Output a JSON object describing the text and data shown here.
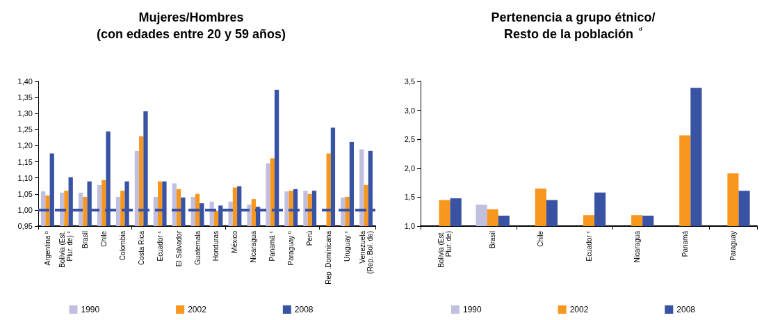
{
  "chart_data": [
    {
      "type": "bar",
      "title": "Mujeres/Hombres\n(con edades entre 20 y 59 años)",
      "categories": [
        "Argentina $^{b}$",
        "Bolivia (Est.\nPlur. de) $^{c}$",
        "Brasil",
        "Chile",
        "Colombia",
        "Costa Rica",
        "Ecuador $^{c}$",
        "El Salvador",
        "Guatemala",
        "Honduras",
        "México",
        "Nicaragua",
        "Panamá $^{c}$",
        "Paraguay $^{b}$",
        "Perú",
        "Rep .Dominicana",
        "Uruguay $^{c}$",
        "Venezuela\n(Rep. Bol. de)"
      ],
      "series": [
        {
          "name": "1990",
          "color": "#c0bfdf",
          "values": [
            1.058,
            1.054,
            1.054,
            1.078,
            1.041,
            1.184,
            1.041,
            1.083,
            1.041,
            1.026,
            1.026,
            1.017,
            1.145,
            1.058,
            1.06,
            null,
            1.039,
            1.189
          ]
        },
        {
          "name": "2002",
          "color": "#f7971e",
          "values": [
            1.045,
            1.06,
            1.041,
            1.093,
            1.06,
            1.229,
            1.089,
            1.065,
            1.05,
            0.998,
            1.07,
            1.034,
            1.161,
            1.06,
            1.05,
            1.176,
            1.041,
            1.078
          ]
        },
        {
          "name": "2008",
          "color": "#3953a4",
          "values": [
            1.176,
            1.102,
            1.089,
            1.244,
            1.089,
            1.307,
            1.089,
            1.039,
            1.021,
            1.014,
            1.074,
            1.01,
            1.374,
            1.065,
            1.06,
            1.256,
            1.212,
            1.184
          ]
        }
      ],
      "ylim": [
        0.95,
        1.4
      ],
      "yticks": [
        {
          "value": 0.95,
          "label": "0,95"
        },
        {
          "value": 1,
          "label": "1,00"
        },
        {
          "value": 1.05,
          "label": "1,05"
        },
        {
          "value": 1.1,
          "label": "1,10"
        },
        {
          "value": 1.15,
          "label": "1,15"
        },
        {
          "value": 1.2,
          "label": "1,20"
        },
        {
          "value": 1.25,
          "label": "1,25"
        },
        {
          "value": 1.3,
          "label": "1,30"
        },
        {
          "value": 1.35,
          "label": "1,35"
        },
        {
          "value": 1.4,
          "label": "1,40"
        }
      ],
      "ref_lines": [
        {
          "axis": "y",
          "value": 1,
          "color": "#3953a4",
          "line_style": "dashed"
        }
      ],
      "grid": false,
      "legend": "bottom"
    },
    {
      "type": "bar",
      "title": "Pertenencia a grupo étnico/\nResto de la población $^{d}$",
      "categories": [
        "Bolivia (Est.\nPlur. de)",
        "Brasil",
        "Chile",
        "Ecuador $^{c}$",
        "Nicaragua",
        "Panamá",
        "Paraguay"
      ],
      "series": [
        {
          "name": "1990",
          "color": "#c0bfdf",
          "values": [
            null,
            1.37,
            null,
            null,
            null,
            null,
            null
          ]
        },
        {
          "name": "2002",
          "color": "#f7971e",
          "values": [
            1.45,
            1.29,
            1.65,
            1.19,
            1.19,
            2.57,
            1.91
          ]
        },
        {
          "name": "2008",
          "color": "#3953a4",
          "values": [
            1.48,
            1.18,
            1.45,
            1.58,
            1.18,
            3.39,
            1.61
          ]
        }
      ],
      "ylim": [
        1,
        3.5
      ],
      "yticks": [
        {
          "value": 1,
          "label": "1,0"
        },
        {
          "value": 1.5,
          "label": "1,5"
        },
        {
          "value": 2,
          "label": "2,0"
        },
        {
          "value": 2.5,
          "label": "2,5"
        },
        {
          "value": 3,
          "label": "3,0"
        },
        {
          "value": 3.5,
          "label": "3,5"
        }
      ],
      "grid": false,
      "legend": "bottom"
    }
  ]
}
